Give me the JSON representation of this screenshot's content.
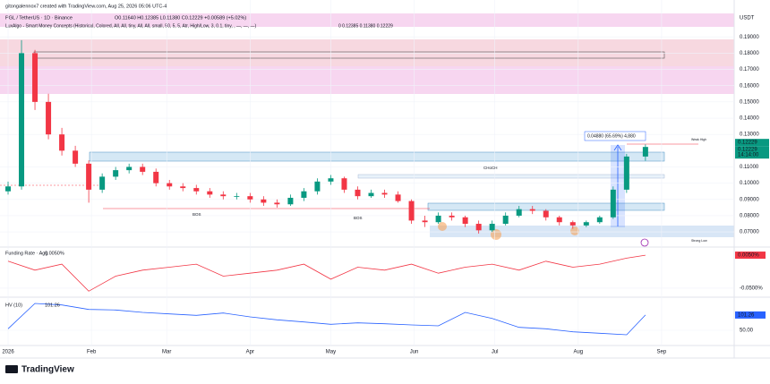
{
  "header": {
    "author": "gitongalennox7 created with TradingView.com, Aug 25, 2026 05:06 UTC-4",
    "symbol": "PGL / TetherUS · 1D · Binance",
    "ohlc": "O0.11640 H0.12385 L0.11380 C0.12229 +0.00589 (+5.02%)",
    "indicator": "LuxAlgo - Smart Money Concepts (Historical, Colored, All, All, tiny, All, All, small, 50, 5, 5, Atr, High/Low, 3, 0.1, tiny, , —, —, —)",
    "indicator_values": "0  0.12385  0.11380  0.12229",
    "currency": "USDT",
    "brand": "TradingView"
  },
  "chart_data": [
    {
      "type": "candlestick",
      "x": [
        0,
        5,
        10,
        15,
        20,
        25,
        30,
        35,
        40,
        45,
        50,
        55,
        60,
        65,
        70,
        75,
        80,
        85,
        90,
        95,
        100,
        105,
        110,
        115,
        120,
        125,
        130,
        135,
        140,
        145,
        150,
        155,
        160,
        165,
        170,
        175,
        180,
        185,
        190,
        195,
        200,
        205,
        210,
        215,
        220,
        225,
        230,
        237
      ],
      "open": [
        0.095,
        0.098,
        0.18,
        0.15,
        0.13,
        0.12,
        0.112,
        0.096,
        0.104,
        0.108,
        0.11,
        0.107,
        0.1,
        0.098,
        0.097,
        0.095,
        0.093,
        0.092,
        0.092,
        0.09,
        0.088,
        0.087,
        0.091,
        0.095,
        0.101,
        0.103,
        0.096,
        0.092,
        0.094,
        0.093,
        0.089,
        0.077,
        0.076,
        0.08,
        0.079,
        0.075,
        0.071,
        0.075,
        0.08,
        0.084,
        0.083,
        0.079,
        0.076,
        0.074,
        0.076,
        0.079,
        0.096,
        0.1164
      ],
      "high": [
        0.101,
        0.188,
        0.182,
        0.155,
        0.134,
        0.123,
        0.114,
        0.106,
        0.11,
        0.112,
        0.112,
        0.109,
        0.102,
        0.1,
        0.099,
        0.097,
        0.095,
        0.094,
        0.094,
        0.092,
        0.09,
        0.093,
        0.097,
        0.103,
        0.105,
        0.104,
        0.098,
        0.096,
        0.096,
        0.095,
        0.09,
        0.08,
        0.082,
        0.082,
        0.08,
        0.077,
        0.077,
        0.082,
        0.086,
        0.086,
        0.084,
        0.08,
        0.077,
        0.077,
        0.08,
        0.098,
        0.118,
        0.12385
      ],
      "low": [
        0.093,
        0.096,
        0.145,
        0.127,
        0.117,
        0.11,
        0.088,
        0.094,
        0.102,
        0.106,
        0.105,
        0.098,
        0.096,
        0.095,
        0.093,
        0.091,
        0.09,
        0.09,
        0.088,
        0.086,
        0.085,
        0.086,
        0.089,
        0.093,
        0.099,
        0.094,
        0.09,
        0.091,
        0.091,
        0.088,
        0.075,
        0.073,
        0.075,
        0.077,
        0.073,
        0.069,
        0.07,
        0.074,
        0.079,
        0.081,
        0.077,
        0.074,
        0.072,
        0.073,
        0.075,
        0.078,
        0.094,
        0.1138
      ],
      "close": [
        0.098,
        0.18,
        0.15,
        0.13,
        0.12,
        0.112,
        0.096,
        0.104,
        0.108,
        0.11,
        0.107,
        0.1,
        0.098,
        0.097,
        0.095,
        0.093,
        0.092,
        0.092,
        0.09,
        0.088,
        0.087,
        0.091,
        0.095,
        0.101,
        0.103,
        0.096,
        0.092,
        0.094,
        0.093,
        0.089,
        0.077,
        0.076,
        0.08,
        0.079,
        0.075,
        0.071,
        0.075,
        0.08,
        0.084,
        0.083,
        0.079,
        0.076,
        0.074,
        0.076,
        0.079,
        0.096,
        0.1164,
        0.12229
      ],
      "up_color": "#089981",
      "down_color": "#f23645",
      "xlim": [
        -3,
        270
      ],
      "xticks": [
        {
          "value": 0,
          "label": "2026"
        },
        {
          "value": 31,
          "label": "Feb"
        },
        {
          "value": 59,
          "label": "Mar"
        },
        {
          "value": 90,
          "label": "Apr"
        },
        {
          "value": 120,
          "label": "May"
        },
        {
          "value": 151,
          "label": "Jun"
        },
        {
          "value": 181,
          "label": "Jul"
        },
        {
          "value": 212,
          "label": "Aug"
        },
        {
          "value": 243,
          "label": "Sep"
        }
      ],
      "ylim": [
        0.064,
        0.205
      ],
      "yticks": [
        {
          "value": 0.07,
          "label": "0.07000"
        },
        {
          "value": 0.08,
          "label": "0.08000"
        },
        {
          "value": 0.09,
          "label": "0.09000"
        },
        {
          "value": 0.1,
          "label": "0.10000"
        },
        {
          "value": 0.11,
          "label": "0.11000"
        },
        {
          "value": 0.13,
          "label": "0.13000"
        },
        {
          "value": 0.14,
          "label": "0.14000"
        },
        {
          "value": 0.15,
          "label": "0.15000"
        },
        {
          "value": 0.16,
          "label": "0.16000"
        },
        {
          "value": 0.17,
          "label": "0.17000"
        },
        {
          "value": 0.18,
          "label": "0.18000"
        },
        {
          "value": 0.19,
          "label": "0.19000"
        }
      ],
      "countdown": "14:14:00",
      "annotations": [
        "0.04880 (65.69%) 4,880",
        "CHoCH",
        "BOS",
        "BOS",
        "Strong Low",
        "Weak High"
      ]
    },
    {
      "type": "line",
      "name": "Funding Rate · Agg",
      "color": "#f23645",
      "x": [
        0,
        10,
        20,
        30,
        40,
        50,
        60,
        70,
        80,
        90,
        100,
        110,
        120,
        130,
        140,
        150,
        160,
        170,
        180,
        190,
        200,
        210,
        220,
        230,
        237
      ],
      "values": [
        -0.005,
        -0.02,
        -0.01,
        -0.055,
        -0.03,
        -0.02,
        -0.015,
        -0.01,
        -0.03,
        -0.025,
        -0.02,
        -0.01,
        -0.035,
        -0.015,
        -0.02,
        -0.01,
        -0.025,
        -0.015,
        -0.01,
        -0.02,
        -0.005,
        -0.015,
        -0.01,
        0.0,
        0.005
      ],
      "last_label": "0.0050%",
      "xlim": [
        -3,
        270
      ],
      "ylim": [
        -0.062,
        0.017
      ],
      "yticks": [
        {
          "value": -0.05,
          "label": "-0.0500%"
        }
      ]
    },
    {
      "type": "line",
      "name": "HV (10)",
      "color": "#2962ff",
      "x": [
        0,
        10,
        20,
        30,
        40,
        50,
        60,
        70,
        80,
        90,
        100,
        110,
        120,
        130,
        140,
        150,
        160,
        170,
        180,
        190,
        200,
        210,
        220,
        230,
        237
      ],
      "values": [
        55,
        140,
        135,
        120,
        118,
        110,
        105,
        100,
        108,
        95,
        85,
        78,
        70,
        75,
        72,
        68,
        65,
        110,
        90,
        60,
        55,
        45,
        40,
        35,
        101.26
      ],
      "xlim": [
        -3,
        270
      ],
      "ylim": [
        2,
        152
      ],
      "yticks": [
        {
          "value": 50,
          "label": "50.00"
        }
      ]
    }
  ]
}
